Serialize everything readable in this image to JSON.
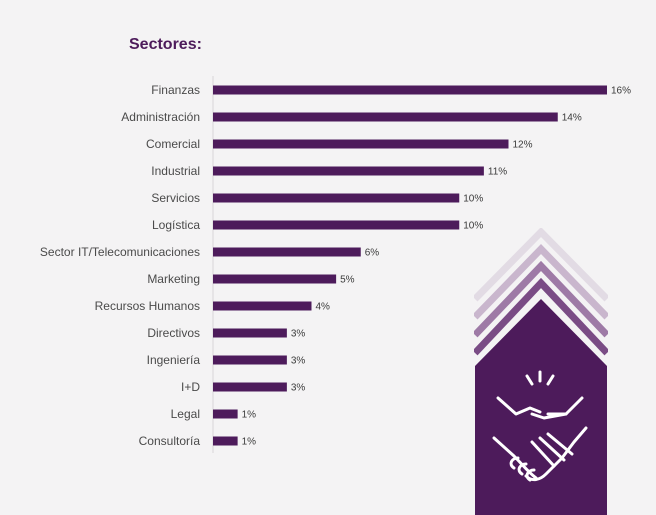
{
  "colors": {
    "bar": "#4d1b5b",
    "title": "#4d1b5b",
    "background": "#f4f3f4",
    "badge_dark": "#4d1b5b",
    "badge_chevron_1": "#e2dbe4",
    "badge_chevron_2": "#c9b6cd",
    "badge_chevron_3": "#9e7aa6",
    "badge_chevron_4": "#7a4c85"
  },
  "badge": {
    "icon": "handshake-icon"
  },
  "chart_data": {
    "type": "bar",
    "orientation": "horizontal",
    "title": "Sectores:",
    "categories": [
      "Finanzas",
      "Administración",
      "Comercial",
      "Industrial",
      "Servicios",
      "Logística",
      "Sector IT/Telecomunicaciones",
      "Marketing",
      "Recursos Humanos",
      "Directivos",
      "Ingeniería",
      "I+D",
      "Legal",
      "Consultoría"
    ],
    "values": [
      16,
      14,
      12,
      11,
      10,
      10,
      6,
      5,
      4,
      3,
      3,
      3,
      1,
      1
    ],
    "value_labels": [
      "16%",
      "14%",
      "12%",
      "11%",
      "10%",
      "10%",
      "6%",
      "5%",
      "4%",
      "3%",
      "3%",
      "3%",
      "1%",
      "1%"
    ],
    "unit": "%",
    "xlim": [
      0,
      16
    ],
    "grid": false,
    "legend": "none"
  }
}
